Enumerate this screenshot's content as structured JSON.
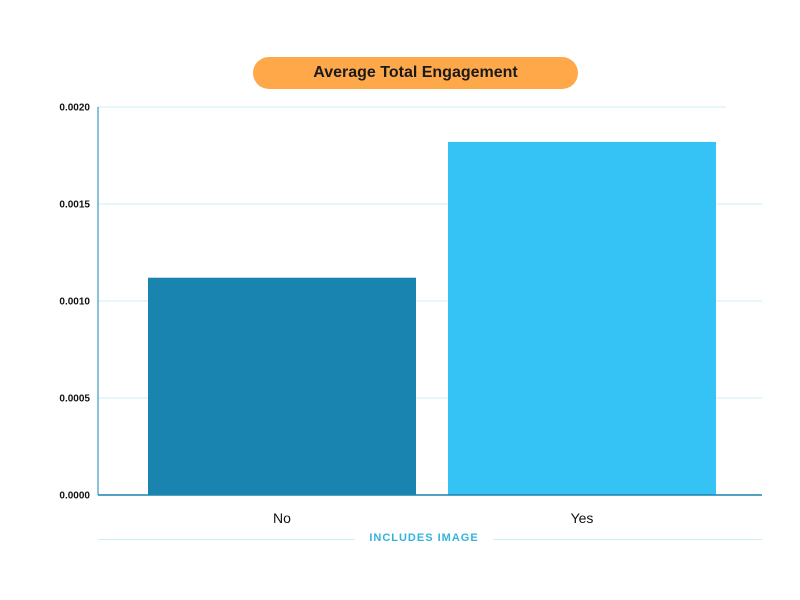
{
  "chart_data": {
    "type": "bar",
    "title": "Average Total Engagement",
    "xlabel": "INCLUDES IMAGE",
    "ylabel": "",
    "categories": [
      "No",
      "Yes"
    ],
    "values": [
      0.00112,
      0.00182
    ],
    "ylim": [
      0,
      0.002
    ],
    "yticks": [
      "0.0000",
      "0.0005",
      "0.0010",
      "0.0015",
      "0.0020"
    ],
    "grid": true,
    "legend": "none",
    "colors": {
      "bars": [
        "#1A84B0",
        "#35C3F5"
      ],
      "title_background": "#FFA84A",
      "axis": "#1A84B0",
      "grid": "#CDEFF6",
      "xlabel": "#35B3DC"
    }
  }
}
